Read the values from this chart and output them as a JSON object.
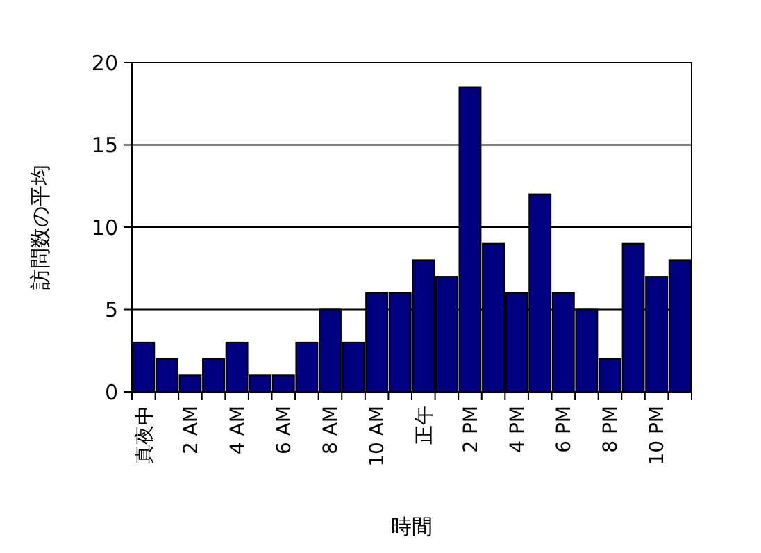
{
  "chart_data": {
    "type": "bar",
    "xlabel": "時間",
    "ylabel": "訪問数の平均",
    "categories": [
      "真夜中",
      null,
      "2 AM",
      null,
      "4 AM",
      null,
      "6 AM",
      null,
      "8 AM",
      null,
      "10 AM",
      null,
      "正午",
      null,
      "2 PM",
      null,
      "4 PM",
      null,
      "6 PM",
      null,
      "8 PM",
      null,
      "10 PM",
      null
    ],
    "values": [
      3,
      2,
      1,
      2,
      3,
      1,
      1,
      3,
      5,
      3,
      6,
      6,
      8,
      7,
      18.5,
      9,
      6,
      12,
      6,
      5,
      2,
      9,
      7,
      8
    ],
    "color": "#000080",
    "ylim": [
      0,
      20
    ],
    "yticks": [
      0,
      5,
      10,
      15,
      20
    ],
    "grid": "y"
  }
}
